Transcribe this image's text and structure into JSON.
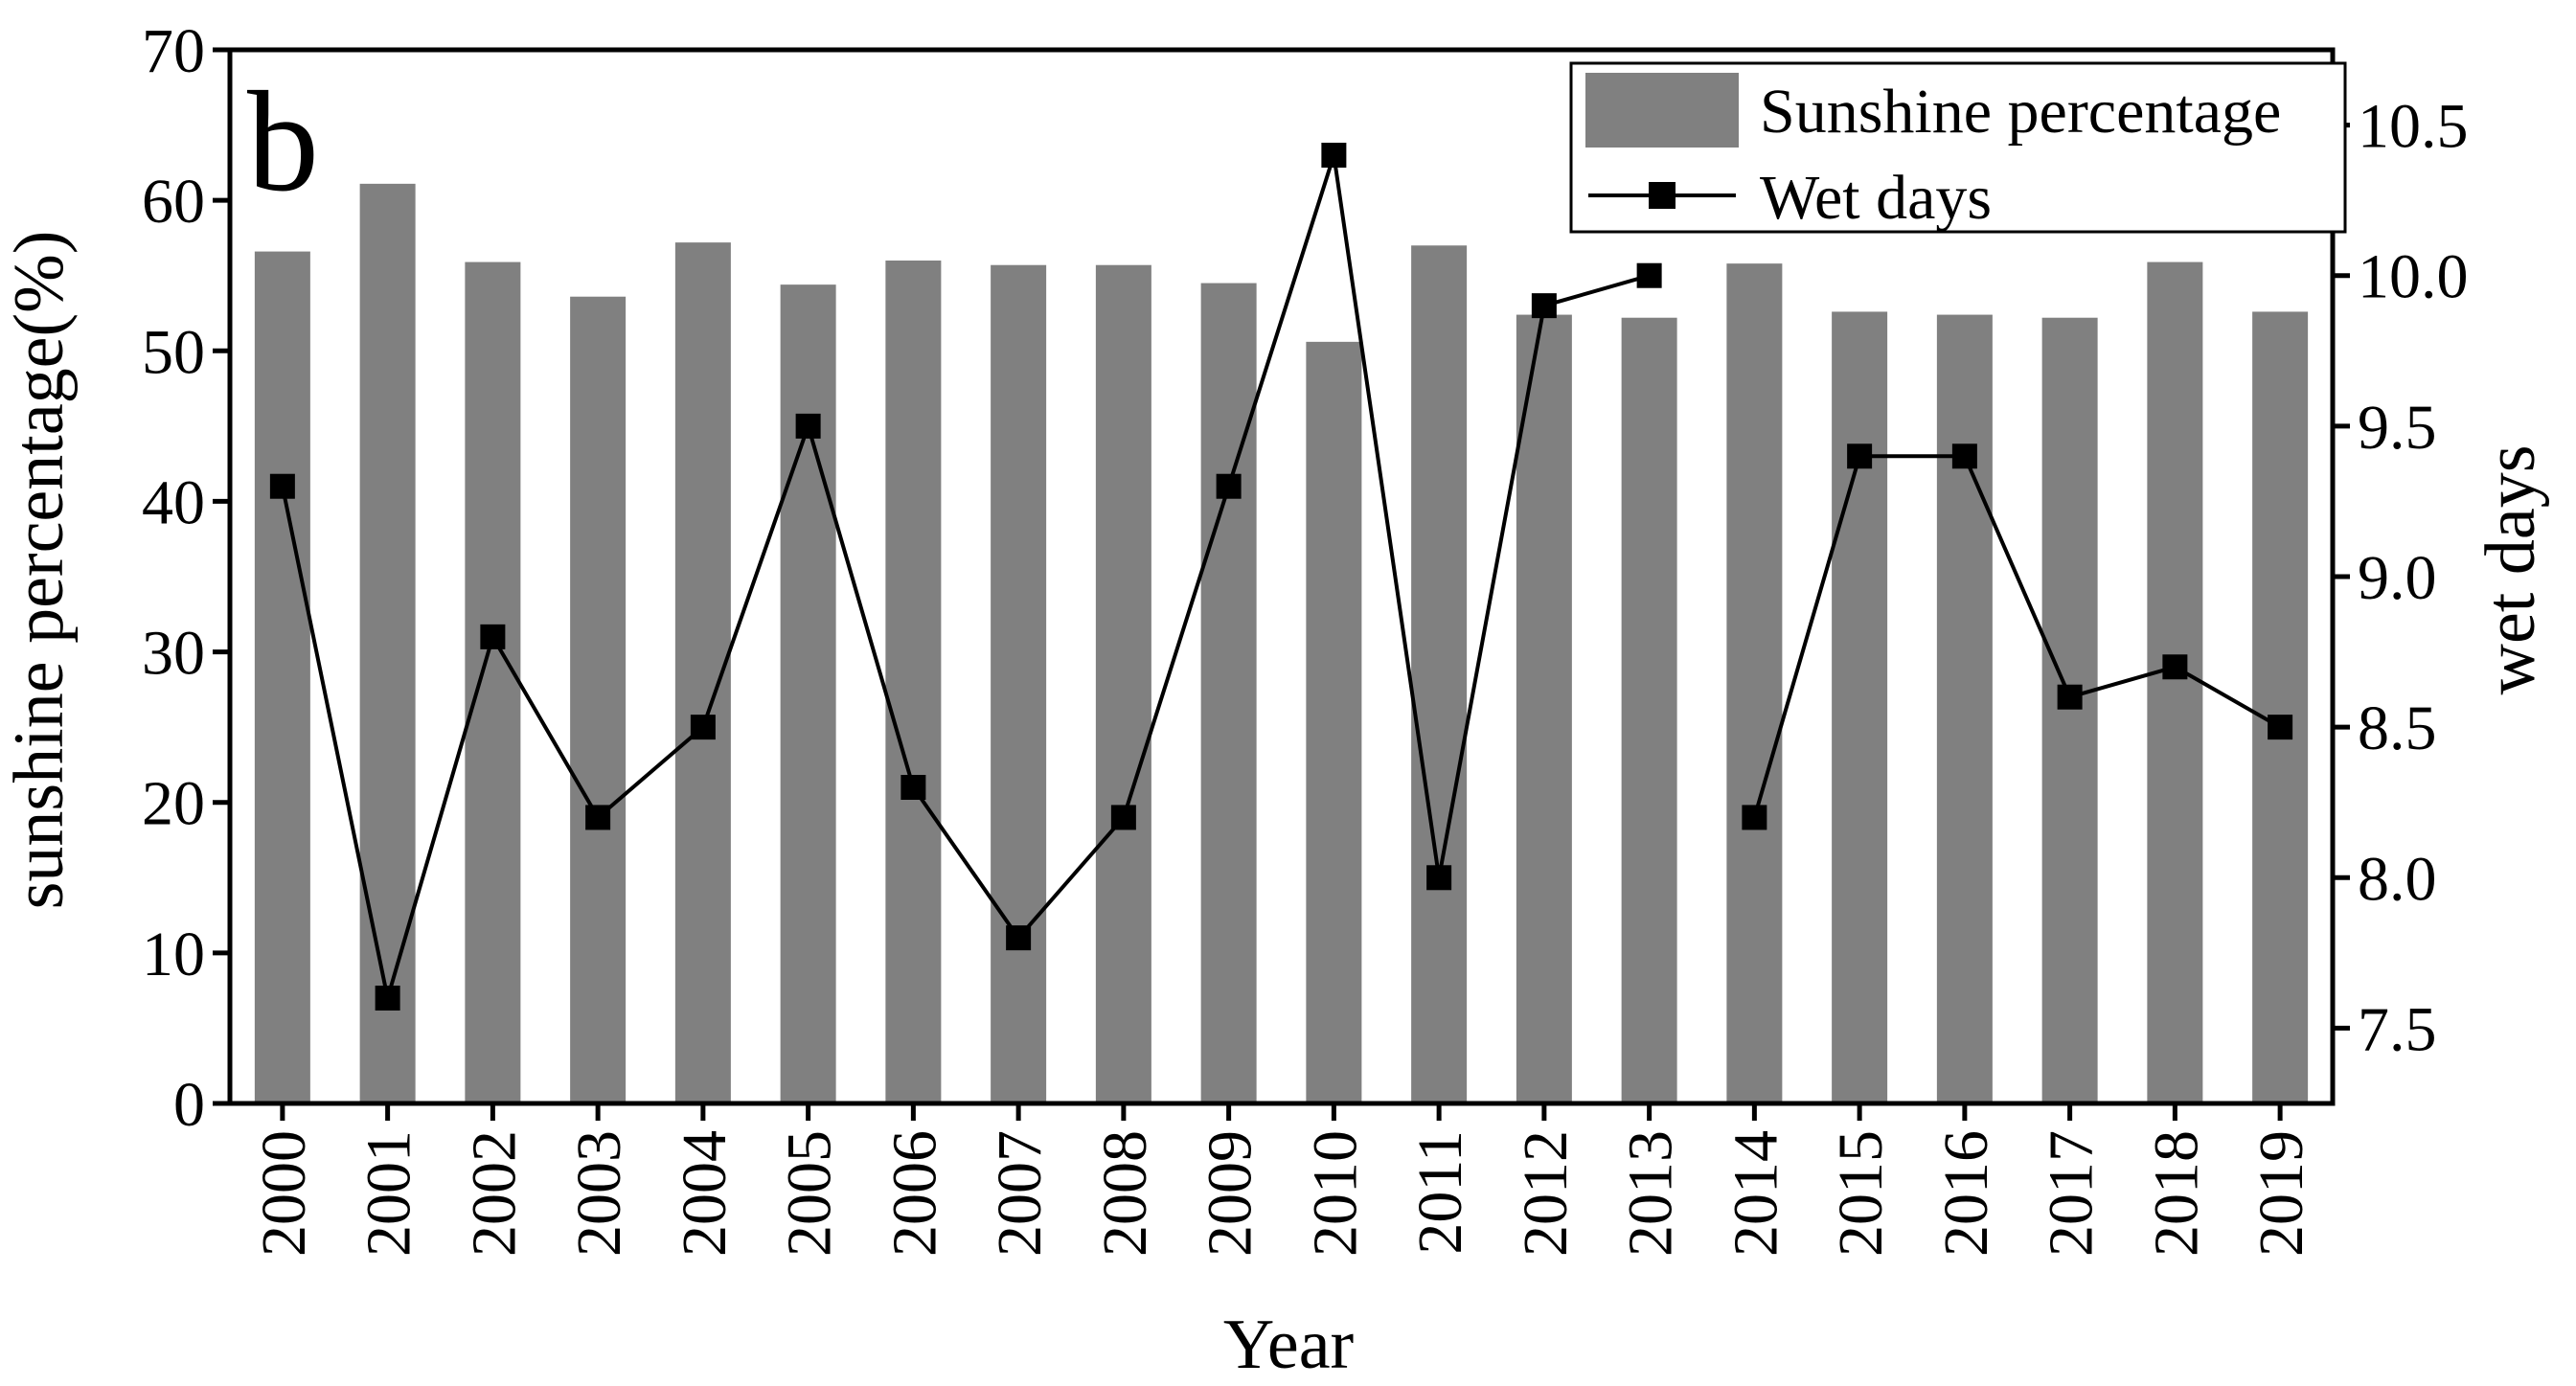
{
  "chart_data": {
    "type": "bar",
    "panel_label": "b",
    "xlabel": "Year",
    "ylabel_left": "sunshine percentage(%)",
    "ylabel_right": "wet days",
    "categories": [
      "2000",
      "2001",
      "2002",
      "2003",
      "2004",
      "2005",
      "2006",
      "2007",
      "2008",
      "2009",
      "2010",
      "2011",
      "2012",
      "2013",
      "2014",
      "2015",
      "2016",
      "2017",
      "2018",
      "2019"
    ],
    "y_left": {
      "min": 0,
      "max": 70,
      "ticks": [
        0,
        10,
        20,
        30,
        40,
        50,
        60,
        70
      ],
      "tick_labels": [
        "0",
        "10",
        "20",
        "30",
        "40",
        "50",
        "60",
        "70"
      ]
    },
    "y_right": {
      "min": 7.25,
      "max": 10.75,
      "ticks": [
        7.5,
        8.0,
        8.5,
        9.0,
        9.5,
        10.0,
        10.5
      ],
      "tick_labels": [
        "7.5",
        "8.0",
        "8.5",
        "9.0",
        "9.5",
        "10.0",
        "10.5"
      ]
    },
    "series": [
      {
        "name": "Sunshine percentage",
        "type": "bar",
        "axis": "left",
        "color": "#808080",
        "values": [
          56.6,
          61.1,
          55.9,
          53.6,
          57.2,
          54.4,
          56.0,
          55.7,
          55.7,
          54.5,
          50.6,
          57.0,
          52.4,
          52.2,
          55.8,
          52.6,
          52.4,
          52.2,
          55.9,
          52.6
        ]
      },
      {
        "name": "Wet days",
        "type": "line",
        "axis": "right",
        "color": "#000000",
        "marker": "square",
        "values": [
          9.3,
          7.6,
          8.8,
          8.2,
          8.5,
          9.5,
          8.3,
          7.8,
          8.2,
          9.3,
          10.4,
          8.0,
          9.9,
          10.0,
          8.2,
          9.4,
          9.4,
          8.6,
          8.7,
          8.5
        ],
        "gap_after_index": 13
      }
    ],
    "legend": {
      "position": "top-right",
      "entries": [
        "Sunshine percentage",
        "Wet days"
      ]
    }
  }
}
